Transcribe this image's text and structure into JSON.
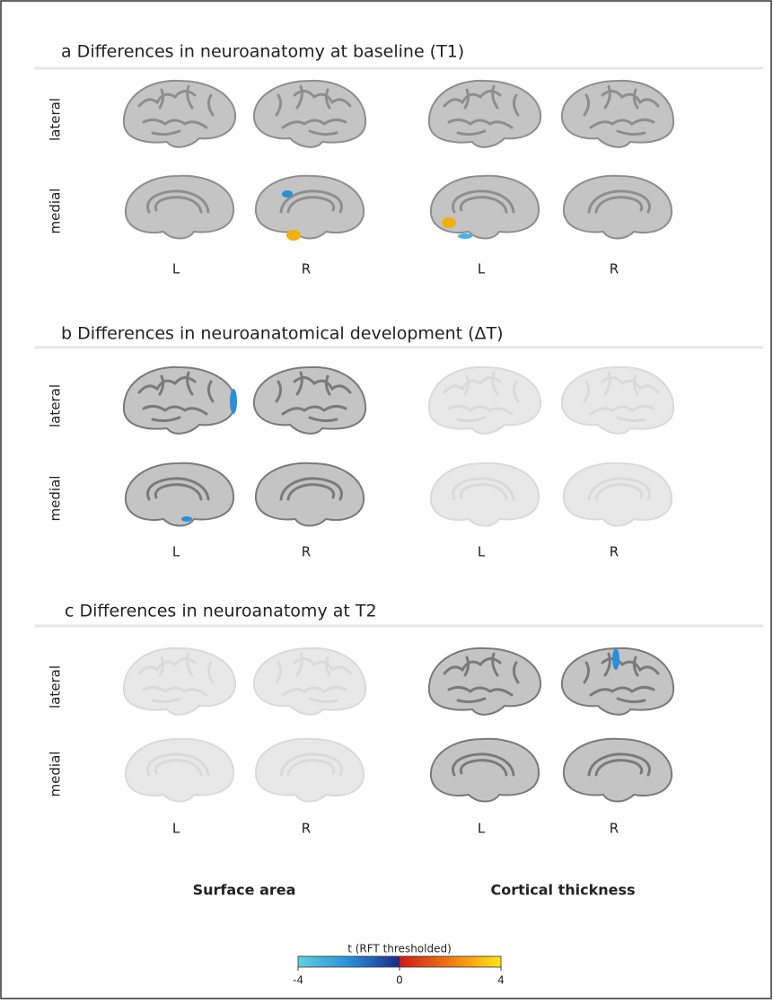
{
  "panels": [
    {
      "title": "a Differences in neuroanatomy at baseline (T1)",
      "views": [
        "lateral",
        "medial"
      ],
      "hemispheres": [
        "L",
        "R",
        "L",
        "R"
      ]
    },
    {
      "title": "b Differences in neuroanatomical development (ΔT)",
      "views": [
        "lateral",
        "medial"
      ],
      "hemispheres": [
        "L",
        "R",
        "L",
        "R"
      ]
    },
    {
      "title": "c Differences in neuroanatomy at T2",
      "views": [
        "lateral",
        "medial"
      ],
      "hemispheres": [
        "L",
        "R",
        "L",
        "R"
      ]
    }
  ],
  "column_labels": [
    "Surface area",
    "Cortical thickness"
  ],
  "colorbar": {
    "title": "t (RFT thresholded)",
    "ticks": [
      -4,
      0,
      4
    ]
  }
}
